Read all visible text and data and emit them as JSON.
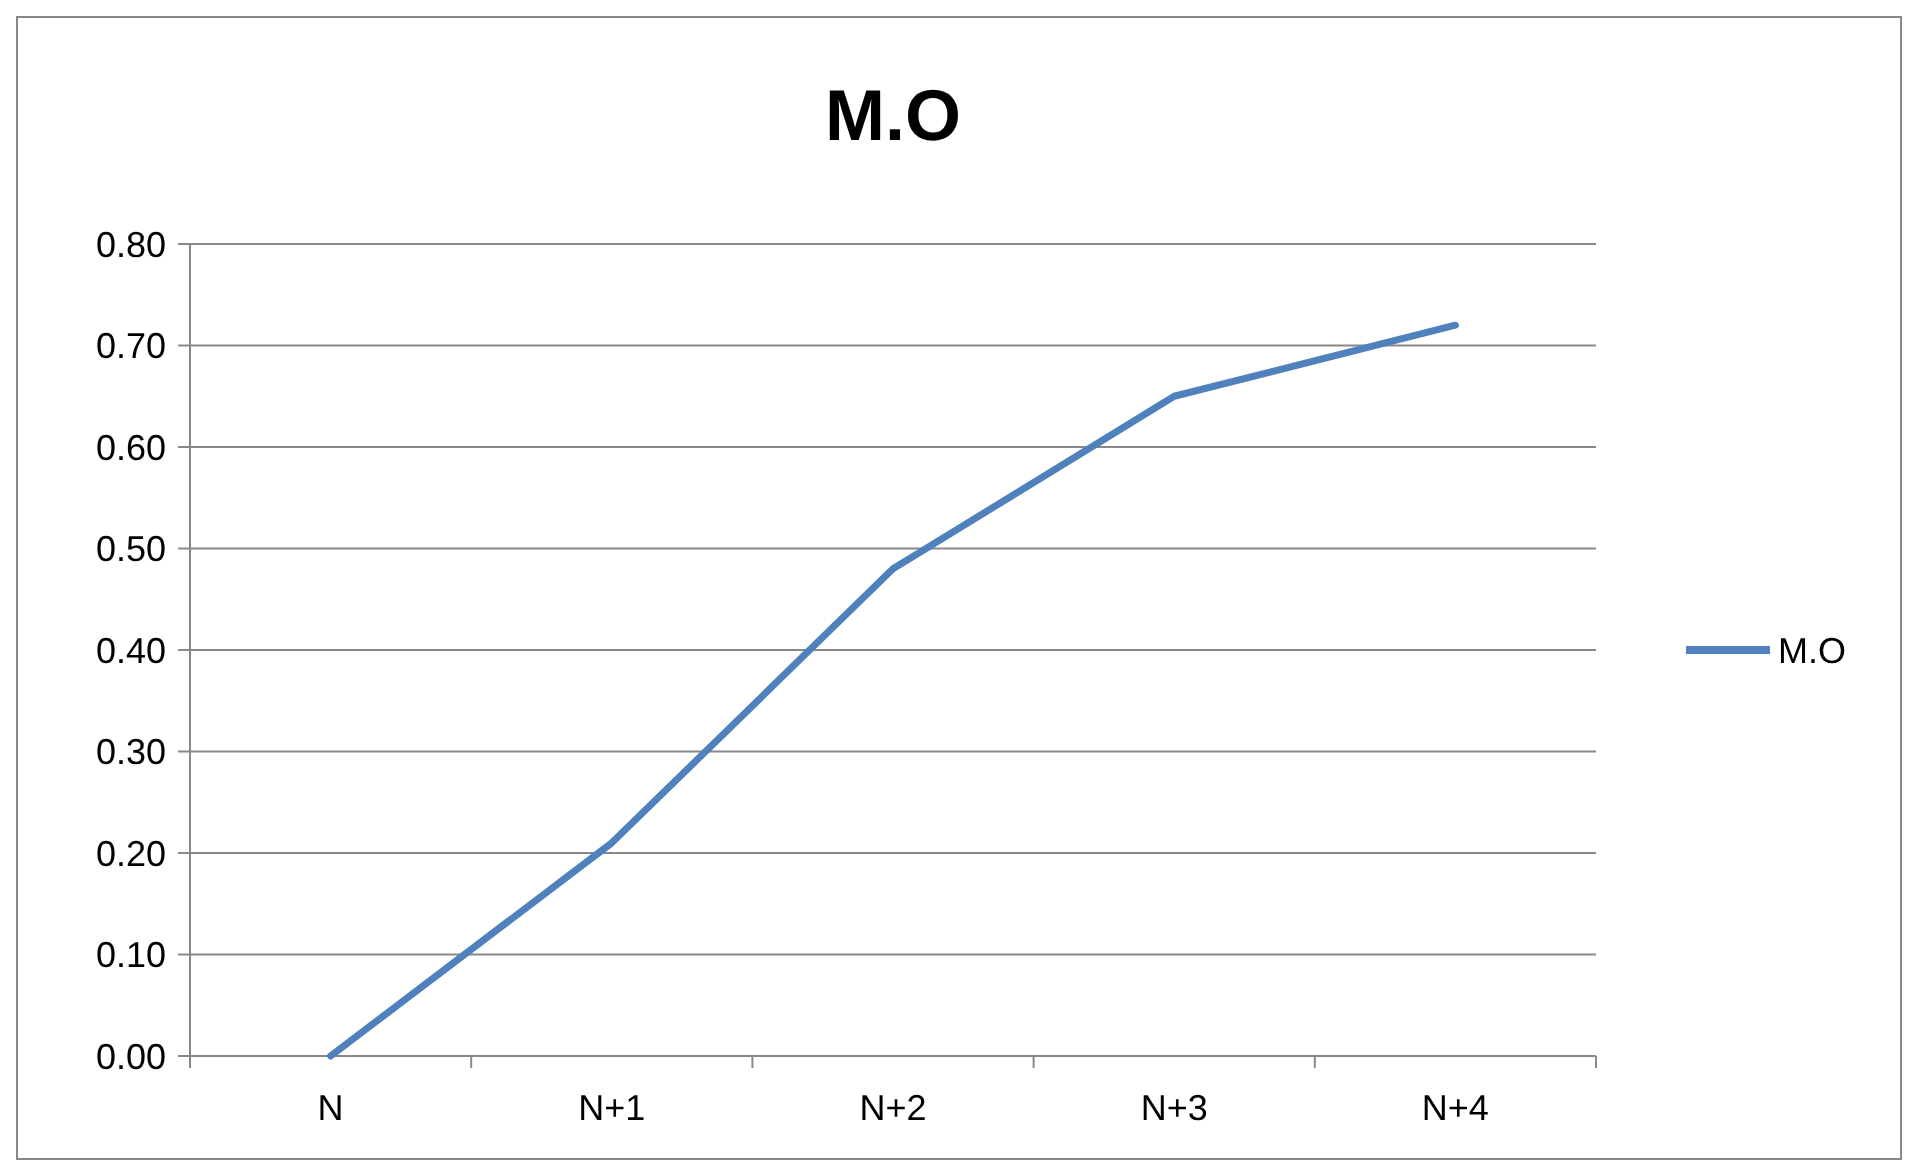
{
  "chart_data": {
    "type": "line",
    "title": "M.O",
    "categories": [
      "N",
      "N+1",
      "N+2",
      "N+3",
      "N+4"
    ],
    "series": [
      {
        "name": "M.O",
        "color": "#4f81bd",
        "values": [
          0,
          0.21,
          0.48,
          0.65,
          0.72
        ]
      }
    ],
    "ylim": [
      0,
      0.8
    ],
    "yticks": [
      {
        "value": 0,
        "label": "0.00"
      },
      {
        "value": 0.1,
        "label": "0.10"
      },
      {
        "value": 0.2,
        "label": "0.20"
      },
      {
        "value": 0.3,
        "label": "0.30"
      },
      {
        "value": 0.4,
        "label": "0.40"
      },
      {
        "value": 0.5,
        "label": "0.50"
      },
      {
        "value": 0.6,
        "label": "0.60"
      },
      {
        "value": 0.7,
        "label": "0.70"
      },
      {
        "value": 0.8,
        "label": "0.80"
      }
    ],
    "grid": "y",
    "legend": "right",
    "marker": "none",
    "line_style": "solid"
  }
}
